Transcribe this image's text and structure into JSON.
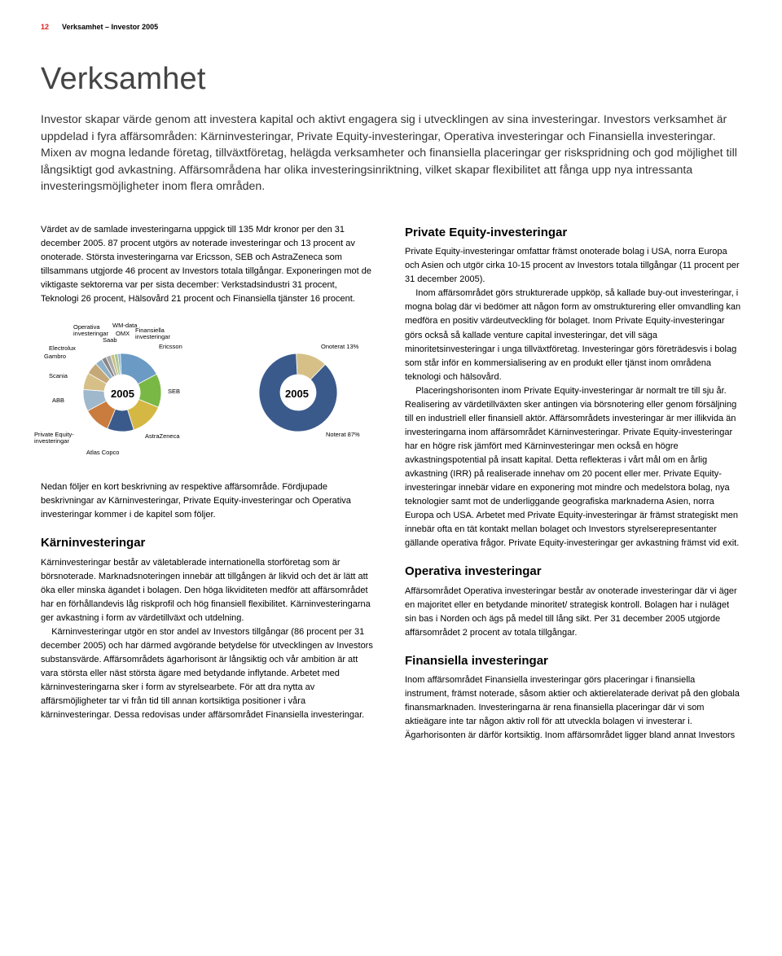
{
  "header": {
    "page_number": "12",
    "running_head": "Verksamhet – Investor 2005"
  },
  "title": "Verksamhet",
  "intro": "Investor skapar värde genom att investera kapital och aktivt engagera sig i utvecklingen av sina investeringar. Investors verksamhet är uppdelad i fyra affärsområden: Kärninvesteringar, Private Equity-investeringar, Operativa investeringar och Finansiella investeringar. Mixen av mogna ledande företag, tillväxtföretag, helägda verksamheter och finansiella placeringar ger riskspridning och god möjlighet till långsiktigt god avkastning. Affärsområdena har olika investeringsinriktning, vilket skapar flexibilitet att fånga upp nya intressanta investeringsmöjligheter inom flera områden.",
  "left": {
    "p1": "Värdet av de samlade investeringarna uppgick till 135 Mdr kronor per den 31 december 2005. 87 procent utgörs av noterade investeringar och 13 procent av onoterade. Största investeringarna var Ericsson, SEB och AstraZeneca som tillsammans utgjorde 46 procent av Investors totala tillgångar. Exponeringen mot de viktigaste sektorerna var per sista december: Verkstadsindustri 31 procent, Teknologi 26 procent, Hälsovård 21 procent och Finansiella tjänster 16 procent.",
    "p_after_charts": "Nedan följer en kort beskrivning av respektive affärsområde. Fördjupade beskrivningar av Kärninvesteringar, Private Equity-investeringar och Operativa investeringar kommer i de kapitel som följer.",
    "karn_title": "Kärninvesteringar",
    "karn_p1": "Kärninvesteringar består av väletablerade internationella storföretag som är börsnoterade. Marknadsnoteringen innebär att tillgången är likvid och det är lätt att öka eller minska ägandet i bolagen. Den höga likviditeten medför att affärsområdet har en förhållandevis låg riskprofil och hög finansiell flexibilitet. Kärninvesteringarna ger avkastning i form av värdetillväxt och utdelning.",
    "karn_p2": "Kärninvesteringar utgör en stor andel av Investors tillgångar (86 procent per 31 december 2005) och har därmed avgörande betydelse för utvecklingen av Investors substansvärde. Affärsområdets ägarhorisont är långsiktig och vår ambition är att vara största eller näst största ägare med betydande inflytande. Arbetet med kärninvesteringarna sker i form av styrelsearbete. För att dra nytta av affärsmöjligheter tar vi från tid till annan kortsiktiga positioner i våra kärninvesteringar. Dessa redovisas under affärsområdet Finansiella investeringar."
  },
  "right": {
    "pe_title": "Private Equity-investeringar",
    "pe_p1": "Private Equity-investeringar omfattar främst onoterade bolag i USA, norra Europa och Asien och utgör cirka 10-15 procent av Investors totala tillgångar (11 procent per 31 december 2005).",
    "pe_p2": "Inom affärsområdet görs strukturerade uppköp, så kallade buy-out investeringar, i mogna bolag där vi bedömer att någon form av omstrukturering eller omvandling kan medföra en positiv värdeutveckling för bolaget. Inom Private Equity-investeringar görs också så kallade venture capital investeringar, det vill säga minoritetsinvesteringar i unga tillväxtföretag. Investeringar görs företrädesvis i bolag som står inför en kommersialisering av en produkt eller tjänst inom områdena teknologi och hälsovård.",
    "pe_p3": "Placeringshorisonten inom Private Equity-investeringar är normalt tre till sju år. Realisering av värdetillväxten sker antingen via börsnotering eller genom försäljning till en industriell eller finansiell aktör. Affärsområdets investeringar är mer illikvida än investeringarna inom affärsområdet Kärninvesteringar. Private Equity-investeringar har en högre risk jämfört med Kärninvesteringar men också en högre avkastningspotential på insatt kapital. Detta reflekteras i vårt mål om en årlig avkastning (IRR) på realiserade innehav om 20 pocent eller mer. Private Equity-investeringar innebär vidare en exponering mot mindre och medelstora bolag, nya teknologier samt mot de underliggande geografiska marknaderna Asien, norra Europa och USA. Arbetet med Private Equity-investeringar är främst strategiskt men innebär ofta en tät kontakt mellan bolaget och Investors styrelserepresentanter gällande operativa frågor. Private Equity-investeringar ger avkastning främst vid exit.",
    "op_title": "Operativa investeringar",
    "op_p1": "Affärsområdet Operativa investeringar består av onoterade investeringar där vi äger en majoritet eller en betydande minoritet/ strategisk kontroll. Bolagen har i nuläget sin bas i Norden och ägs på medel till lång sikt. Per 31 december 2005 utgjorde affärsområdet 2 procent av totala tillgångar.",
    "fin_title": "Finansiella investeringar",
    "fin_p1": "Inom affärsområdet Finansiella investeringar görs placeringar i finansiella instrument, främst noterade, såsom aktier och aktierelaterade derivat på den globala finansmarknaden. Investeringarna är rena finansiella placeringar där vi som aktieägare inte tar någon aktiv roll för att utveckla bolagen vi investerar i. Ägarhorisonten är därför kortsiktig. Inom affärsområdet ligger bland annat Investors"
  },
  "chart1": {
    "type": "donut",
    "year": "2005",
    "slices": [
      {
        "label": "Ericsson",
        "value": 18,
        "color": "#6b9bc4"
      },
      {
        "label": "SEB",
        "value": 14,
        "color": "#7ab845"
      },
      {
        "label": "AstraZeneca",
        "value": 14,
        "color": "#d4b843"
      },
      {
        "label": "Atlas Copco",
        "value": 11,
        "color": "#3b5a8c"
      },
      {
        "label": "Private Equity-\ninvesteringar",
        "value": 11,
        "color": "#c97c3e"
      },
      {
        "label": "ABB",
        "value": 9,
        "color": "#a0b8cc"
      },
      {
        "label": "Scania",
        "value": 7,
        "color": "#d6c088"
      },
      {
        "label": "Gambro",
        "value": 5,
        "color": "#c4a878"
      },
      {
        "label": "Electrolux",
        "value": 3,
        "color": "#8eb0c8"
      },
      {
        "label": "Operativa\ninvesteringar",
        "value": 2,
        "color": "#888888"
      },
      {
        "label": "Saab",
        "value": 2,
        "color": "#aaaaaa"
      },
      {
        "label": "WM-data",
        "value": 1.5,
        "color": "#c8c080"
      },
      {
        "label": "OMX",
        "value": 1.5,
        "color": "#a8c890"
      },
      {
        "label": "Finansiella\ninvesteringar",
        "value": 1,
        "color": "#88b0d0"
      }
    ],
    "inner_radius": 22,
    "outer_radius": 48,
    "background": "#ffffff"
  },
  "chart2": {
    "type": "donut",
    "year": "2005",
    "slices": [
      {
        "label": "Onoterat 13%",
        "value": 13,
        "color": "#d6c088"
      },
      {
        "label": "Noterat 87%",
        "value": 87,
        "color": "#3b5a8c"
      }
    ],
    "inner_radius": 22,
    "outer_radius": 48,
    "background": "#ffffff"
  }
}
